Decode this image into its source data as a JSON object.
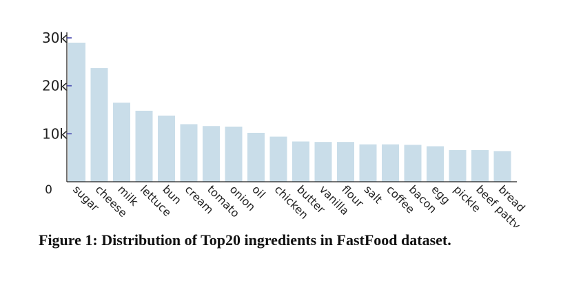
{
  "chart_data": {
    "type": "bar",
    "categories": [
      "sugar",
      "cheese",
      "milk",
      "lettuce",
      "bun",
      "cream",
      "tomato",
      "onion",
      "oil",
      "chicken",
      "butter",
      "vanilla",
      "flour",
      "salt",
      "coffee",
      "bacon",
      "egg",
      "pickle",
      "beef patty",
      "bread"
    ],
    "values": [
      29000,
      23700,
      16500,
      14800,
      13800,
      12000,
      11600,
      11500,
      10200,
      9400,
      8400,
      8300,
      8300,
      7800,
      7800,
      7700,
      7400,
      6600,
      6600,
      6400
    ],
    "title": "",
    "xlabel": "",
    "ylabel": "",
    "ylim": [
      0,
      30000
    ],
    "yticks": [
      0,
      10000,
      20000,
      30000
    ],
    "ytick_labels": [
      "0",
      "10k",
      "20k",
      "30k"
    ],
    "grid": false,
    "bar_color": "#c9dde9",
    "axis_color": "#222222",
    "tick_color": "#3a3aa8"
  },
  "caption": {
    "text": "Figure 1: Distribution of Top20 ingredients in FastFood dataset."
  }
}
